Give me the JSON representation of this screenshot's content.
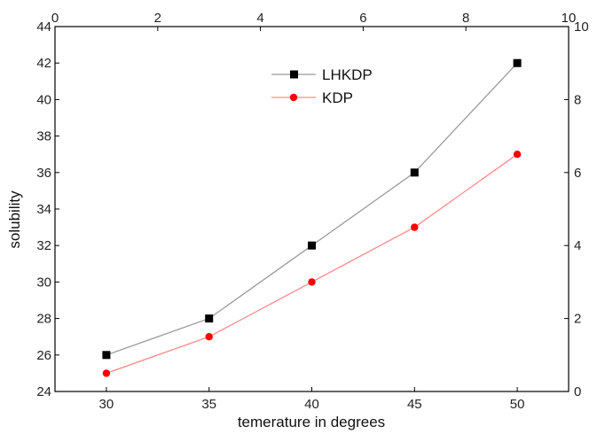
{
  "chart_data": {
    "type": "line",
    "xlabel": "temerature in degrees",
    "ylabel": "solubility",
    "x": [
      30,
      35,
      40,
      45,
      50
    ],
    "xlim": [
      27.5,
      52.5
    ],
    "ylim": [
      24,
      44
    ],
    "x_ticks": [
      "30",
      "35",
      "40",
      "45",
      "50"
    ],
    "y_ticks": [
      "24",
      "26",
      "28",
      "30",
      "32",
      "34",
      "36",
      "38",
      "40",
      "42",
      "44"
    ],
    "top_axis": {
      "range": [
        0,
        10
      ],
      "ticks": [
        "0",
        "2",
        "4",
        "6",
        "8",
        "10"
      ]
    },
    "right_axis": {
      "range": [
        0,
        10
      ],
      "ticks": [
        "0",
        "2",
        "4",
        "6",
        "8",
        "10"
      ]
    },
    "grid": false,
    "legend_position": "top-center",
    "series": [
      {
        "name": "LHKDP",
        "values": [
          26,
          28,
          32,
          36,
          42
        ],
        "line_color": "#9a9a9a",
        "marker_color": "#000000",
        "marker": "square"
      },
      {
        "name": "KDP",
        "values": [
          25,
          27,
          30,
          33,
          37
        ],
        "line_color": "#ff8a8a",
        "marker_color": "#ff0000",
        "marker": "circle"
      }
    ]
  }
}
